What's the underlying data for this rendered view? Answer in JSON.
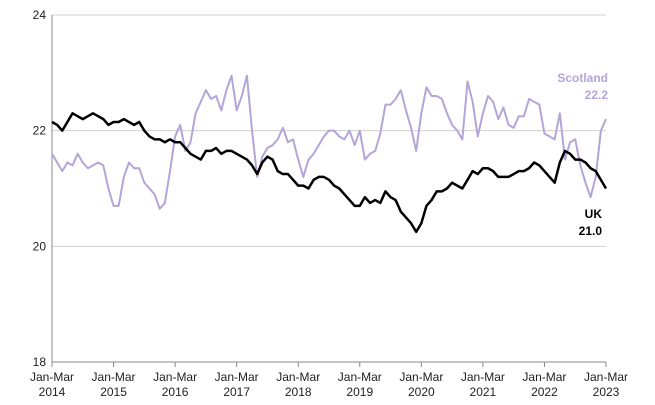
{
  "chart_data": {
    "type": "line",
    "categories": [
      "Jan-Mar 2014",
      null,
      null,
      null,
      null,
      null,
      null,
      null,
      null,
      null,
      null,
      null,
      "Jan-Mar 2015",
      null,
      null,
      null,
      null,
      null,
      null,
      null,
      null,
      null,
      null,
      null,
      "Jan-Mar 2016",
      null,
      null,
      null,
      null,
      null,
      null,
      null,
      null,
      null,
      null,
      null,
      "Jan-Mar 2017",
      null,
      null,
      null,
      null,
      null,
      null,
      null,
      null,
      null,
      null,
      null,
      "Jan-Mar 2018",
      null,
      null,
      null,
      null,
      null,
      null,
      null,
      null,
      null,
      null,
      null,
      "Jan-Mar 2019",
      null,
      null,
      null,
      null,
      null,
      null,
      null,
      null,
      null,
      null,
      null,
      "Jan-Mar 2020",
      null,
      null,
      null,
      null,
      null,
      null,
      null,
      null,
      null,
      null,
      null,
      "Jan-Mar 2021",
      null,
      null,
      null,
      null,
      null,
      null,
      null,
      null,
      null,
      null,
      null,
      "Jan-Mar 2022",
      null,
      null,
      null,
      null,
      null,
      null,
      null,
      null,
      null,
      null,
      null,
      "Jan-Mar 2023"
    ],
    "series": [
      {
        "name": "UK",
        "color": "#000000",
        "end_label": "21.0",
        "values": [
          22.15,
          22.1,
          22.0,
          22.15,
          22.3,
          22.25,
          22.2,
          22.25,
          22.3,
          22.25,
          22.2,
          22.1,
          22.15,
          22.15,
          22.2,
          22.15,
          22.1,
          22.15,
          22.0,
          21.9,
          21.85,
          21.85,
          21.8,
          21.85,
          21.8,
          21.8,
          21.7,
          21.6,
          21.55,
          21.5,
          21.65,
          21.65,
          21.7,
          21.6,
          21.65,
          21.65,
          21.6,
          21.55,
          21.5,
          21.4,
          21.25,
          21.45,
          21.55,
          21.5,
          21.3,
          21.25,
          21.25,
          21.15,
          21.05,
          21.05,
          21.0,
          21.15,
          21.2,
          21.2,
          21.15,
          21.05,
          21.0,
          20.9,
          20.8,
          20.7,
          20.7,
          20.85,
          20.75,
          20.8,
          20.75,
          20.95,
          20.85,
          20.8,
          20.6,
          20.5,
          20.4,
          20.25,
          20.4,
          20.7,
          20.8,
          20.95,
          20.95,
          21.0,
          21.1,
          21.05,
          21.0,
          21.15,
          21.3,
          21.25,
          21.35,
          21.35,
          21.3,
          21.2,
          21.2,
          21.2,
          21.25,
          21.3,
          21.3,
          21.35,
          21.45,
          21.4,
          21.3,
          21.2,
          21.1,
          21.45,
          21.65,
          21.6,
          21.5,
          21.5,
          21.45,
          21.35,
          21.3,
          21.15,
          21.0
        ]
      },
      {
        "name": "Scotland",
        "color": "#b4a5d8",
        "end_label": "22.2",
        "values": [
          21.6,
          21.45,
          21.3,
          21.45,
          21.4,
          21.6,
          21.45,
          21.35,
          21.4,
          21.45,
          21.4,
          21.0,
          20.7,
          20.7,
          21.2,
          21.45,
          21.35,
          21.35,
          21.1,
          21.0,
          20.9,
          20.65,
          20.75,
          21.3,
          21.9,
          22.1,
          21.65,
          21.8,
          22.3,
          22.5,
          22.7,
          22.55,
          22.6,
          22.35,
          22.7,
          22.95,
          22.35,
          22.6,
          22.95,
          22.0,
          21.2,
          21.55,
          21.7,
          21.75,
          21.85,
          22.05,
          21.8,
          21.85,
          21.5,
          21.2,
          21.5,
          21.6,
          21.75,
          21.9,
          22.0,
          22.0,
          21.9,
          21.85,
          22.0,
          21.75,
          22.0,
          21.5,
          21.6,
          21.65,
          21.95,
          22.45,
          22.45,
          22.55,
          22.7,
          22.35,
          22.05,
          21.65,
          22.3,
          22.75,
          22.6,
          22.6,
          22.55,
          22.3,
          22.1,
          22.0,
          21.85,
          22.85,
          22.5,
          21.9,
          22.3,
          22.6,
          22.5,
          22.2,
          22.4,
          22.1,
          22.05,
          22.25,
          22.25,
          22.55,
          22.5,
          22.45,
          21.95,
          21.9,
          21.85,
          22.3,
          21.5,
          21.8,
          21.85,
          21.4,
          21.1,
          20.85,
          21.2,
          22.0,
          22.2
        ]
      }
    ],
    "ylim": [
      18,
      24
    ],
    "yticks": [
      18,
      20,
      22,
      24
    ],
    "grid": true
  }
}
